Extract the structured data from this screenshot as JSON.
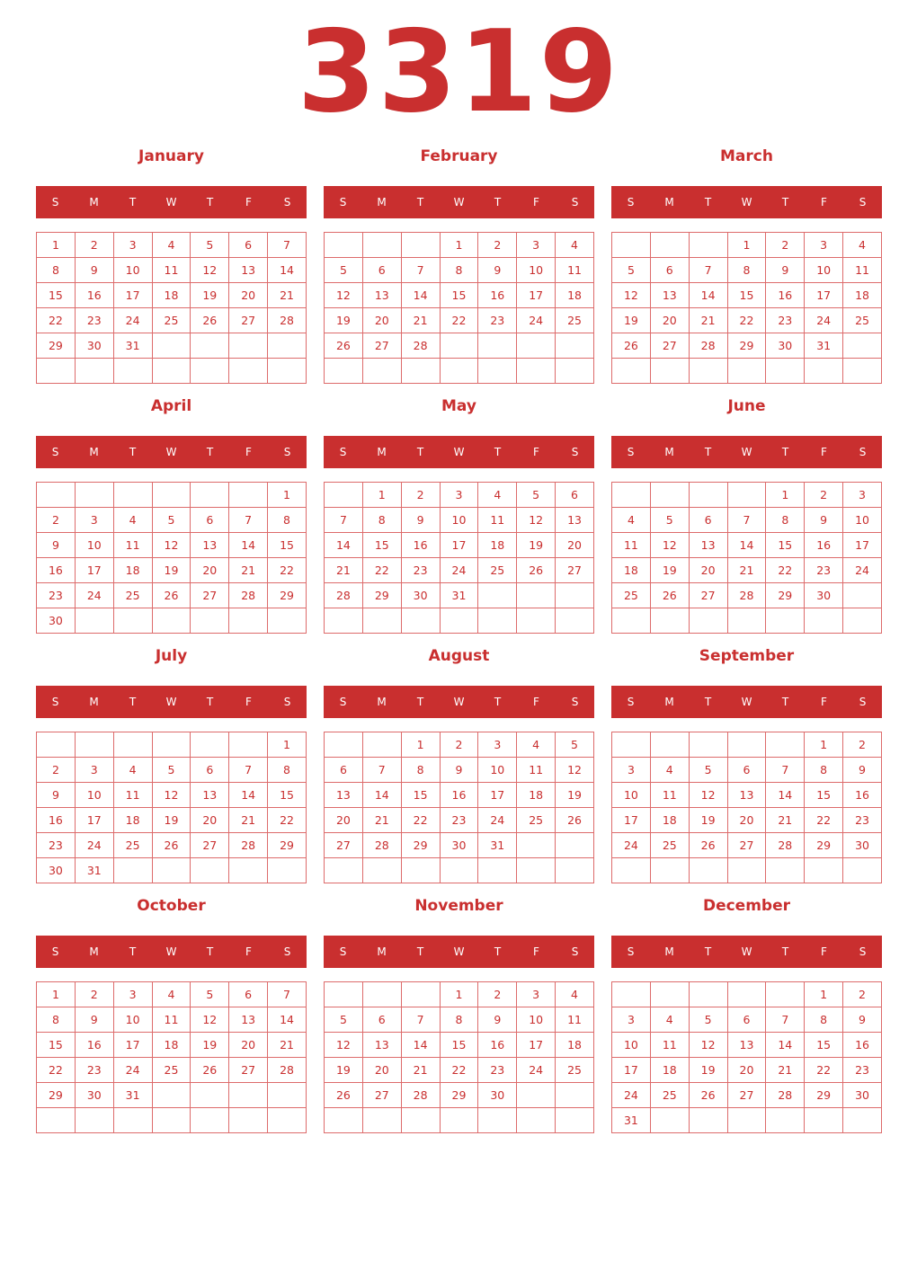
{
  "year": "3319",
  "weekday_labels": [
    "S",
    "M",
    "T",
    "W",
    "T",
    "F",
    "S"
  ],
  "accent_color": "#c92f2f",
  "months": [
    {
      "name": "January",
      "first_weekday": 0,
      "days": 31
    },
    {
      "name": "February",
      "first_weekday": 3,
      "days": 28
    },
    {
      "name": "March",
      "first_weekday": 3,
      "days": 31
    },
    {
      "name": "April",
      "first_weekday": 6,
      "days": 30
    },
    {
      "name": "May",
      "first_weekday": 1,
      "days": 31
    },
    {
      "name": "June",
      "first_weekday": 4,
      "days": 30
    },
    {
      "name": "July",
      "first_weekday": 6,
      "days": 31
    },
    {
      "name": "August",
      "first_weekday": 2,
      "days": 31
    },
    {
      "name": "September",
      "first_weekday": 5,
      "days": 30
    },
    {
      "name": "October",
      "first_weekday": 0,
      "days": 31
    },
    {
      "name": "November",
      "first_weekday": 3,
      "days": 30
    },
    {
      "name": "December",
      "first_weekday": 5,
      "days": 31
    }
  ]
}
